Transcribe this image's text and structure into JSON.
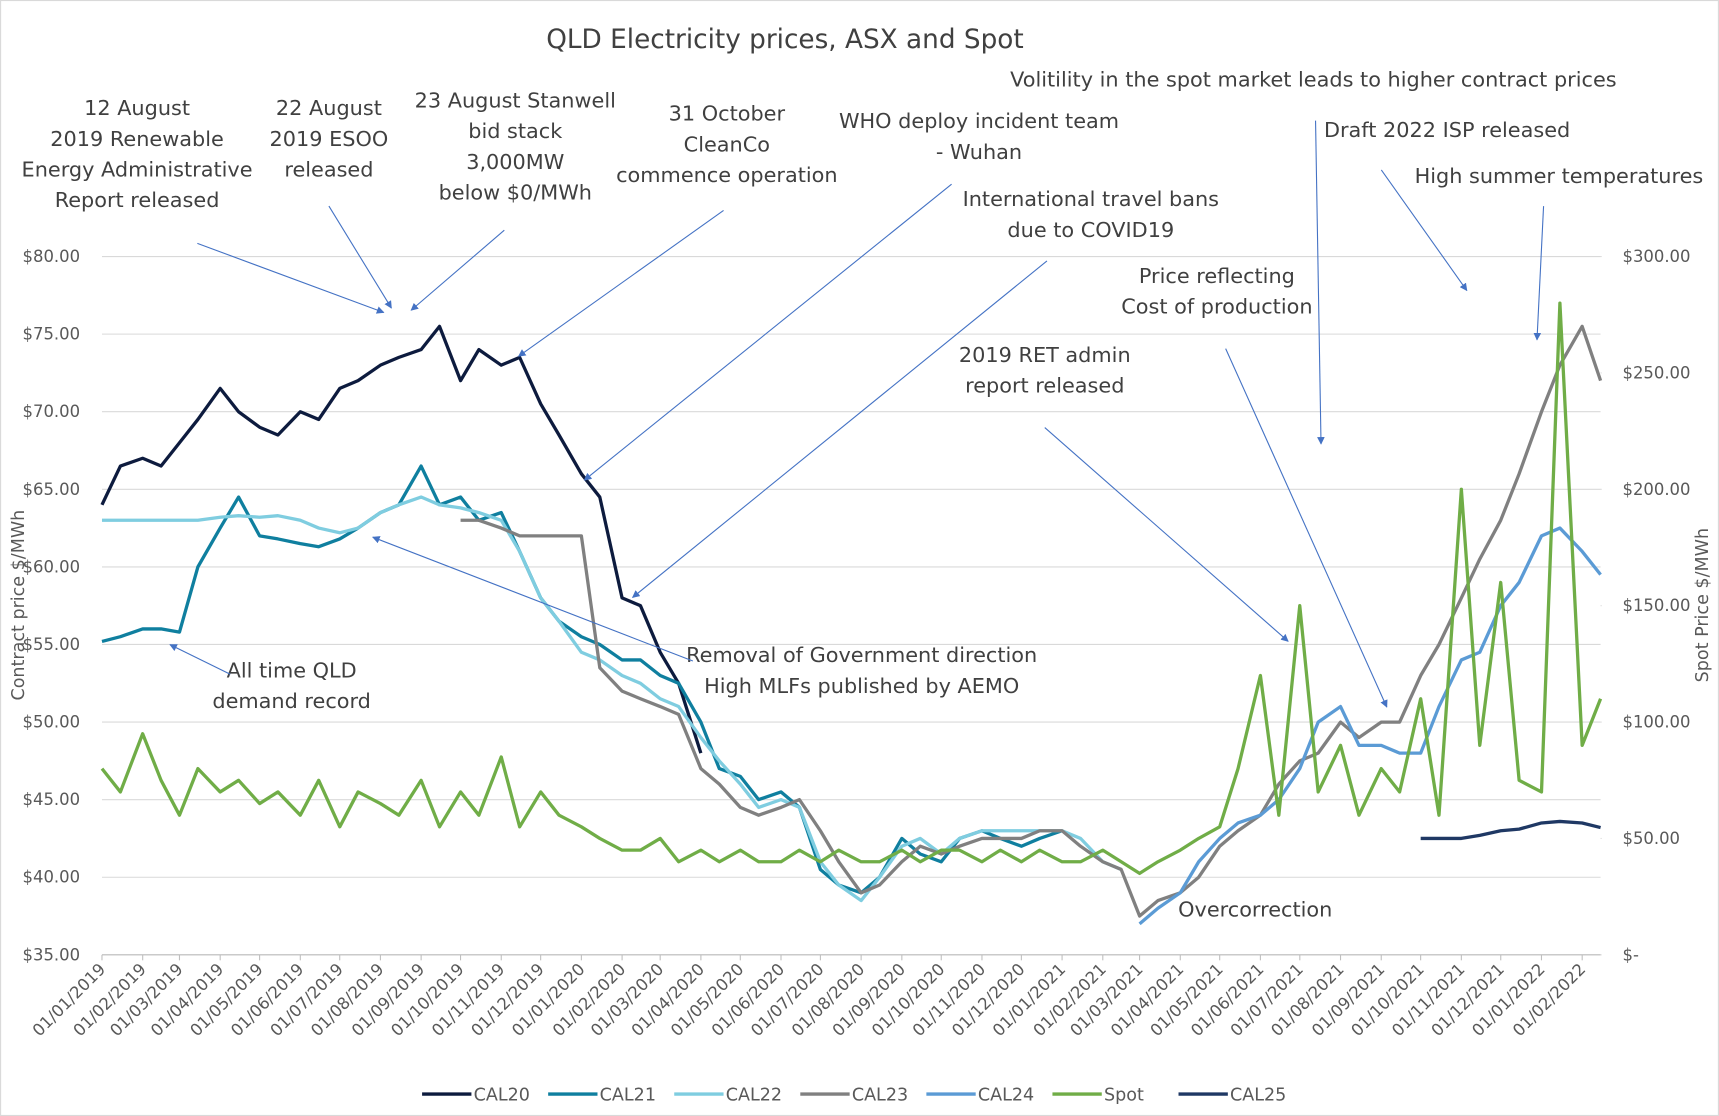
{
  "chart_data": {
    "type": "line",
    "title": "QLD Electricity prices, ASX and Spot",
    "y_label": "Contract price $/MWh",
    "y2_label": "Spot Price $/MWh",
    "x": [
      "01/01/2019",
      "15/01/2019",
      "01/02/2019",
      "15/02/2019",
      "01/03/2019",
      "15/03/2019",
      "01/04/2019",
      "15/04/2019",
      "01/05/2019",
      "15/05/2019",
      "01/06/2019",
      "15/06/2019",
      "01/07/2019",
      "15/07/2019",
      "01/08/2019",
      "15/08/2019",
      "01/09/2019",
      "15/09/2019",
      "01/10/2019",
      "15/10/2019",
      "01/11/2019",
      "15/11/2019",
      "01/12/2019",
      "15/12/2019",
      "01/01/2020",
      "15/01/2020",
      "01/02/2020",
      "15/02/2020",
      "01/03/2020",
      "15/03/2020",
      "01/04/2020",
      "15/04/2020",
      "01/05/2020",
      "15/05/2020",
      "01/06/2020",
      "15/06/2020",
      "01/07/2020",
      "15/07/2020",
      "01/08/2020",
      "15/08/2020",
      "01/09/2020",
      "15/09/2020",
      "01/10/2020",
      "15/10/2020",
      "01/11/2020",
      "15/11/2020",
      "01/12/2020",
      "15/12/2020",
      "01/01/2021",
      "15/01/2021",
      "01/02/2021",
      "15/02/2021",
      "01/03/2021",
      "15/03/2021",
      "01/04/2021",
      "15/04/2021",
      "01/05/2021",
      "15/05/2021",
      "01/06/2021",
      "15/06/2021",
      "01/07/2021",
      "15/07/2021",
      "01/08/2021",
      "15/08/2021",
      "01/09/2021",
      "15/09/2021",
      "01/10/2021",
      "15/10/2021",
      "01/11/2021",
      "15/11/2021",
      "01/12/2021",
      "15/12/2021",
      "01/01/2022",
      "15/01/2022",
      "01/02/2022",
      "15/02/2022"
    ],
    "xlim": [
      "01/01/2019",
      "15/02/2022"
    ],
    "xticks": [
      "01/01/2019",
      "01/02/2019",
      "01/03/2019",
      "01/04/2019",
      "01/05/2019",
      "01/06/2019",
      "01/07/2019",
      "01/08/2019",
      "01/09/2019",
      "01/10/2019",
      "01/11/2019",
      "01/12/2019",
      "01/01/2020",
      "01/02/2020",
      "01/03/2020",
      "01/04/2020",
      "01/05/2020",
      "01/06/2020",
      "01/07/2020",
      "01/08/2020",
      "01/09/2020",
      "01/10/2020",
      "01/11/2020",
      "01/12/2020",
      "01/01/2021",
      "01/02/2021",
      "01/03/2021",
      "01/04/2021",
      "01/05/2021",
      "01/06/2021",
      "01/07/2021",
      "01/08/2021",
      "01/09/2021",
      "01/10/2021",
      "01/11/2021",
      "01/12/2021",
      "01/01/2022",
      "01/02/2022"
    ],
    "ylim": [
      35,
      80
    ],
    "yticks": [
      {
        "value": 35,
        "label": "$35.00"
      },
      {
        "value": 40,
        "label": "$40.00"
      },
      {
        "value": 45,
        "label": "$45.00"
      },
      {
        "value": 50,
        "label": "$50.00"
      },
      {
        "value": 55,
        "label": "$55.00"
      },
      {
        "value": 60,
        "label": "$60.00"
      },
      {
        "value": 65,
        "label": "$65.00"
      },
      {
        "value": 70,
        "label": "$70.00"
      },
      {
        "value": 75,
        "label": "$75.00"
      },
      {
        "value": 80,
        "label": "$80.00"
      }
    ],
    "y2lim": [
      0,
      300
    ],
    "y2ticks": [
      {
        "value": 0,
        "label": "$-"
      },
      {
        "value": 50,
        "label": "$50.00"
      },
      {
        "value": 100,
        "label": "$100.00"
      },
      {
        "value": 150,
        "label": "$150.00"
      },
      {
        "value": 200,
        "label": "$200.00"
      },
      {
        "value": 250,
        "label": "$250.00"
      },
      {
        "value": 300,
        "label": "$300.00"
      }
    ],
    "grid": true,
    "legend": "bottom",
    "series": [
      {
        "name": "CAL20",
        "color": "#0d1b3e",
        "values": [
          64,
          66.5,
          67,
          66.5,
          68,
          69.5,
          71.5,
          70,
          69,
          68.5,
          70,
          69.5,
          71.5,
          72,
          73,
          73.5,
          74,
          75.5,
          72,
          74,
          73,
          73.5,
          70.5,
          68.5,
          66,
          64.5,
          58,
          57.5,
          54.5,
          52.5,
          48,
          null,
          null,
          null,
          null,
          null,
          null,
          null,
          null,
          null,
          null,
          null,
          null,
          null,
          null,
          null,
          null,
          null,
          null,
          null,
          null,
          null,
          null,
          null,
          null,
          null,
          null,
          null,
          null,
          null,
          null,
          null,
          null,
          null,
          null,
          null,
          null,
          null,
          null,
          null,
          null,
          null,
          null,
          null,
          null,
          null
        ]
      },
      {
        "name": "CAL21",
        "color": "#0f7f9f",
        "values": [
          55.2,
          55.5,
          56,
          56,
          55.8,
          60,
          62.5,
          64.5,
          62,
          61.8,
          61.5,
          61.3,
          61.8,
          62.5,
          63.5,
          64,
          66.5,
          64,
          64.5,
          63,
          63.5,
          61,
          58,
          56.5,
          55.5,
          55,
          54,
          54,
          53,
          52.5,
          50,
          47,
          46.5,
          45,
          45.5,
          44.5,
          40.5,
          39.5,
          39,
          40,
          42.5,
          41.5,
          41,
          42.5,
          43,
          42.5,
          42,
          42.5,
          43,
          null,
          null,
          null,
          null,
          null,
          null,
          null,
          null,
          null,
          null,
          null,
          null,
          null,
          null,
          null,
          null,
          null,
          null,
          null,
          null,
          null,
          null,
          null,
          null,
          null,
          null,
          null
        ]
      },
      {
        "name": "CAL22",
        "color": "#7fcde0",
        "values": [
          63,
          63,
          63,
          63,
          63,
          63,
          63.2,
          63.3,
          63.2,
          63.3,
          63,
          62.5,
          62.2,
          62.5,
          63.5,
          64,
          64.5,
          64,
          63.8,
          63.5,
          63,
          61,
          58,
          56.5,
          54.5,
          54,
          53,
          52.5,
          51.5,
          51,
          49,
          47.5,
          46,
          44.5,
          45,
          44.5,
          41,
          39.5,
          38.5,
          40,
          42,
          42.5,
          41.5,
          42.5,
          43,
          43,
          43,
          43,
          43,
          42.5,
          41,
          40.5,
          null,
          null,
          null,
          null,
          null,
          null,
          null,
          null,
          null,
          null,
          null,
          null,
          null,
          null,
          null,
          null,
          null,
          null,
          null,
          null,
          null,
          null,
          null,
          null
        ]
      },
      {
        "name": "CAL23",
        "color": "#808080",
        "values": [
          null,
          null,
          null,
          null,
          null,
          null,
          null,
          null,
          null,
          null,
          null,
          null,
          null,
          null,
          null,
          null,
          null,
          null,
          63,
          63,
          62.5,
          62,
          62,
          62,
          62,
          53.5,
          52,
          51.5,
          51,
          50.5,
          47,
          46,
          44.5,
          44,
          44.5,
          45,
          43,
          41,
          39,
          39.5,
          41,
          42,
          41.5,
          42,
          42.5,
          42.5,
          42.5,
          43,
          43,
          42,
          41,
          40.5,
          37.5,
          38.5,
          39,
          40,
          42,
          43,
          44,
          46,
          47.5,
          48,
          50,
          49,
          50,
          50,
          53,
          55,
          58,
          60.5,
          63,
          66,
          70,
          73,
          75.5,
          72
        ]
      },
      {
        "name": "CAL24",
        "color": "#5b9bd5",
        "values": [
          null,
          null,
          null,
          null,
          null,
          null,
          null,
          null,
          null,
          null,
          null,
          null,
          null,
          null,
          null,
          null,
          null,
          null,
          null,
          null,
          null,
          null,
          null,
          null,
          null,
          null,
          null,
          null,
          null,
          null,
          null,
          null,
          null,
          null,
          null,
          null,
          null,
          null,
          null,
          null,
          null,
          null,
          null,
          null,
          null,
          null,
          null,
          null,
          null,
          null,
          null,
          null,
          37,
          38,
          39,
          41,
          42.5,
          43.5,
          44,
          45,
          47,
          50,
          51,
          48.5,
          48.5,
          48,
          48,
          51,
          54,
          54.5,
          57.5,
          59,
          62,
          62.5,
          61,
          59.5
        ]
      },
      {
        "name": "Spot",
        "color": "#70ad47",
        "axis": "y2",
        "values": [
          80,
          70,
          95,
          75,
          60,
          80,
          70,
          75,
          65,
          70,
          60,
          75,
          55,
          70,
          65,
          60,
          75,
          55,
          70,
          60,
          85,
          55,
          70,
          60,
          55,
          50,
          45,
          45,
          50,
          40,
          45,
          40,
          45,
          40,
          40,
          45,
          40,
          45,
          40,
          40,
          45,
          40,
          45,
          45,
          40,
          45,
          40,
          45,
          40,
          40,
          45,
          40,
          35,
          40,
          45,
          50,
          55,
          80,
          120,
          60,
          150,
          70,
          90,
          60,
          80,
          70,
          110,
          60,
          200,
          90,
          160,
          75,
          70,
          280,
          90,
          110
        ]
      },
      {
        "name": "CAL25",
        "color": "#1f3864",
        "values": [
          null,
          null,
          null,
          null,
          null,
          null,
          null,
          null,
          null,
          null,
          null,
          null,
          null,
          null,
          null,
          null,
          null,
          null,
          null,
          null,
          null,
          null,
          null,
          null,
          null,
          null,
          null,
          null,
          null,
          null,
          null,
          null,
          null,
          null,
          null,
          null,
          null,
          null,
          null,
          null,
          null,
          null,
          null,
          null,
          null,
          null,
          null,
          null,
          null,
          null,
          null,
          null,
          null,
          null,
          null,
          null,
          null,
          null,
          null,
          null,
          null,
          null,
          null,
          null,
          null,
          null,
          42.5,
          42.5,
          42.5,
          42.7,
          43,
          43.1,
          43.5,
          43.6,
          43.5,
          43.2
        ]
      }
    ],
    "annotations": [
      [
        "12 August",
        "2019 Renewable",
        "Energy Administrative",
        "Report released"
      ],
      [
        "22 August",
        "2019 ESOO",
        "released"
      ],
      [
        "23 August Stanwell",
        "bid stack",
        "3,000MW",
        "below $0/MWh"
      ],
      [
        "31 October",
        "CleanCo",
        "commence operation"
      ],
      [
        "WHO deploy incident team",
        "- Wuhan"
      ],
      [
        "International travel bans",
        "due to COVID19"
      ],
      [
        "Price reflecting",
        "Cost of production"
      ],
      [
        "2019 RET admin",
        "report released"
      ],
      [
        "Volitility in the spot market leads to higher contract prices"
      ],
      [
        "Draft 2022 ISP released"
      ],
      [
        "High summer temperatures"
      ],
      [
        "All time QLD",
        "demand record"
      ],
      [
        "Removal of Government direction",
        "High MLFs published by AEMO"
      ],
      [
        "Overcorrection"
      ]
    ]
  }
}
